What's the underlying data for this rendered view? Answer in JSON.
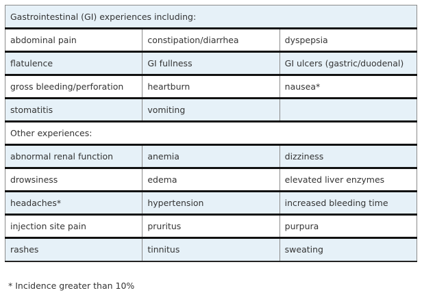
{
  "table": {
    "section_gi": {
      "header": "Gastrointestinal (GI) experiences including:",
      "rows": [
        [
          "abdominal pain",
          "constipation/diarrhea",
          "dyspepsia"
        ],
        [
          "flatulence",
          "GI fullness",
          "GI ulcers (gastric/duodenal)"
        ],
        [
          "gross bleeding/perforation",
          "heartburn",
          "nausea*"
        ],
        [
          "stomatitis",
          "vomiting",
          ""
        ]
      ]
    },
    "section_other": {
      "header": "Other experiences:",
      "rows": [
        [
          "abnormal renal function",
          "anemia",
          "dizziness"
        ],
        [
          "drowsiness",
          "edema",
          "elevated liver enzymes"
        ],
        [
          "headaches*",
          "hypertension",
          "increased bleeding time"
        ],
        [
          "injection site pain",
          "pruritus",
          "purpura"
        ],
        [
          "rashes",
          "tinnitus",
          "sweating"
        ]
      ]
    }
  },
  "footnote": "* Incidence greater than 10%"
}
